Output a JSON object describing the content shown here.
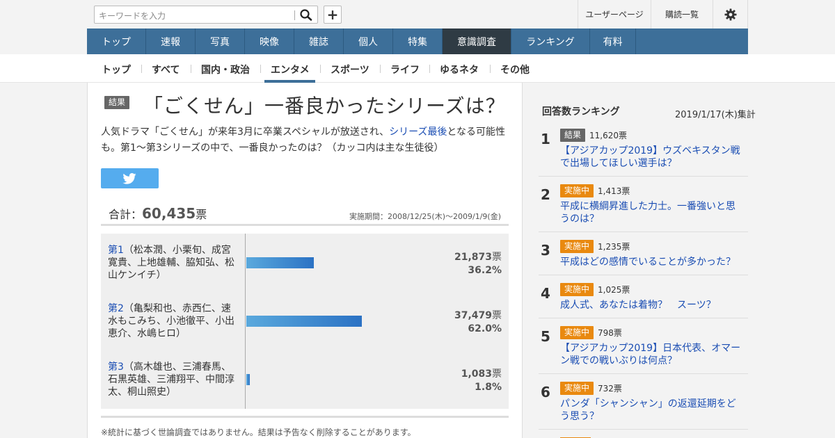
{
  "header": {
    "search_placeholder": "キーワードを入力",
    "user_page": "ユーザーページ",
    "subscriptions": "購読一覧"
  },
  "main_nav": [
    "トップ",
    "速報",
    "写真",
    "映像",
    "雑誌",
    "個人",
    "特集",
    "意識調査",
    "ランキング",
    "有料"
  ],
  "main_nav_active": "意識調査",
  "sub_nav": [
    "トップ",
    "すべて",
    "国内・政治",
    "エンタメ",
    "スポーツ",
    "ライフ",
    "ゆるネタ",
    "その他"
  ],
  "sub_nav_active": "エンタメ",
  "survey": {
    "badge": "結果",
    "title": "「ごくせん」一番良かったシリーズは？",
    "desc_before": "人気ドラマ「ごくせん」が来年3月に卒業スペシャルが放送され、",
    "desc_link": "シリーズ最後",
    "desc_after": "となる可能性も。第1～第3シリーズの中で、一番良かったのは？（カッコ内は主な生徒役）",
    "total_label": "合計：",
    "total_value": "60,435",
    "total_unit": "票",
    "period": "実施期間：2008/12/25(木)〜2009/1/9(金)",
    "options": [
      {
        "link": "第1",
        "text": "（松本潤、小栗旬、成宮寛貴、上地雄輔、脇知弘、松山ケンイチ）",
        "votes": "21,873",
        "unit": "票",
        "pct": "36.2%",
        "share": 36.2
      },
      {
        "link": "第2",
        "text": "（亀梨和也、赤西仁、速水もこみち、小池徹平、小出恵介、水嶋ヒロ）",
        "votes": "37,479",
        "unit": "票",
        "pct": "62.0%",
        "share": 62.0
      },
      {
        "link": "第3",
        "text": "（高木雄也、三浦春馬、石黒英雄、三浦翔平、中間淳太、桐山照史）",
        "votes": "1,083",
        "unit": "票",
        "pct": "1.8%",
        "share": 1.8
      }
    ],
    "note": "※統計に基づく世論調査ではありません。結果は予告なく削除することがあります。"
  },
  "sidebar": {
    "title": "回答数ランキング",
    "date": "2019/1/17(木)集計",
    "items": [
      {
        "rank": "1",
        "badge": "結果",
        "status": "result",
        "votes": "11,620票",
        "title": "【アジアカップ2019】ウズベキスタン戦で出場してほしい選手は？"
      },
      {
        "rank": "2",
        "badge": "実施中",
        "status": "active",
        "votes": "1,413票",
        "title": "平成に横綱昇進した力士。一番強いと思うのは？"
      },
      {
        "rank": "3",
        "badge": "実施中",
        "status": "active",
        "votes": "1,235票",
        "title": "平成はどの感情でいることが多かった？"
      },
      {
        "rank": "4",
        "badge": "実施中",
        "status": "active",
        "votes": "1,025票",
        "title": "成人式、あなたは着物？　スーツ？"
      },
      {
        "rank": "5",
        "badge": "実施中",
        "status": "active",
        "votes": "798票",
        "title": "【アジアカップ2019】日本代表、オマーン戦での戦いぶりは何点？"
      },
      {
        "rank": "6",
        "badge": "実施中",
        "status": "active",
        "votes": "732票",
        "title": "パンダ「シャンシャン」の返還延期をどう思う？"
      }
    ]
  },
  "colors": {
    "nav": "#3d6f99",
    "nav_active": "#2f3b44",
    "link": "#1a4db3",
    "badge_active": "#e9890f",
    "badge_result": "#666666",
    "twitter": "#55acee"
  }
}
